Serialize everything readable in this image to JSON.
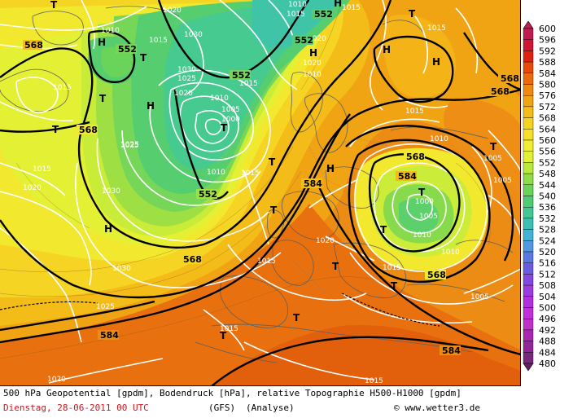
{
  "legend": {
    "levels": [
      "600",
      "596",
      "592",
      "588",
      "584",
      "580",
      "576",
      "572",
      "568",
      "564",
      "560",
      "556",
      "552",
      "548",
      "544",
      "540",
      "536",
      "532",
      "528",
      "524",
      "520",
      "516",
      "512",
      "508",
      "504",
      "500",
      "496",
      "492",
      "488",
      "484",
      "480"
    ],
    "colors": [
      "#c01a50",
      "#d01432",
      "#e02010",
      "#e84808",
      "#ec6a0c",
      "#ee8a12",
      "#f0a412",
      "#f4bc18",
      "#f6d222",
      "#f6e02a",
      "#f0ee30",
      "#e0f034",
      "#b8ea3c",
      "#8edc48",
      "#6ad45a",
      "#52cc74",
      "#42c894",
      "#3cc0b4",
      "#44b4d4",
      "#5098e0",
      "#5a78e0",
      "#6a5ce0",
      "#8248e0",
      "#9a3ce0",
      "#b030e0",
      "#c030d8",
      "#c030c8",
      "#a828b0",
      "#902898",
      "#78287c",
      "#602060"
    ]
  },
  "fields": {
    "pressure_labels": [
      "1020",
      "1015",
      "1010",
      "1015",
      "1030",
      "1025",
      "1030",
      "1025",
      "1020",
      "1010",
      "1015",
      "1005",
      "1000",
      "1010",
      "1015",
      "1025",
      "1030",
      "1020",
      "1015",
      "1010",
      "1010",
      "1005",
      "1000",
      "1005",
      "1010",
      "1015",
      "1020",
      "1015",
      "1030",
      "1025",
      "1020",
      "1015",
      "1010",
      "1015",
      "1020",
      "1015",
      "1015",
      "1005",
      "1005",
      "1010",
      "1015",
      "1020",
      "1015"
    ],
    "height_labels": [
      "568",
      "552",
      "552",
      "552",
      "552",
      "568",
      "568",
      "552",
      "568",
      "584",
      "568",
      "568",
      "584",
      "584",
      "584",
      "568"
    ],
    "highs": [
      "H",
      "H",
      "H",
      "H",
      "H",
      "H",
      "H",
      "H"
    ],
    "lows": [
      "T",
      "T",
      "T",
      "T",
      "T",
      "T",
      "T",
      "T",
      "T",
      "T",
      "T",
      "T",
      "T",
      "T",
      "T"
    ]
  },
  "footer": {
    "line1": "500 hPa Geopotential [gpdm], Bodendruck [hPa], relative Topographie H500-H1000 [gpdm]",
    "date": "Dienstag, 28-06-2011  00 UTC",
    "model": "(GFS)",
    "mode": "(Analyse)",
    "credit": "© www.wetter3.de"
  }
}
